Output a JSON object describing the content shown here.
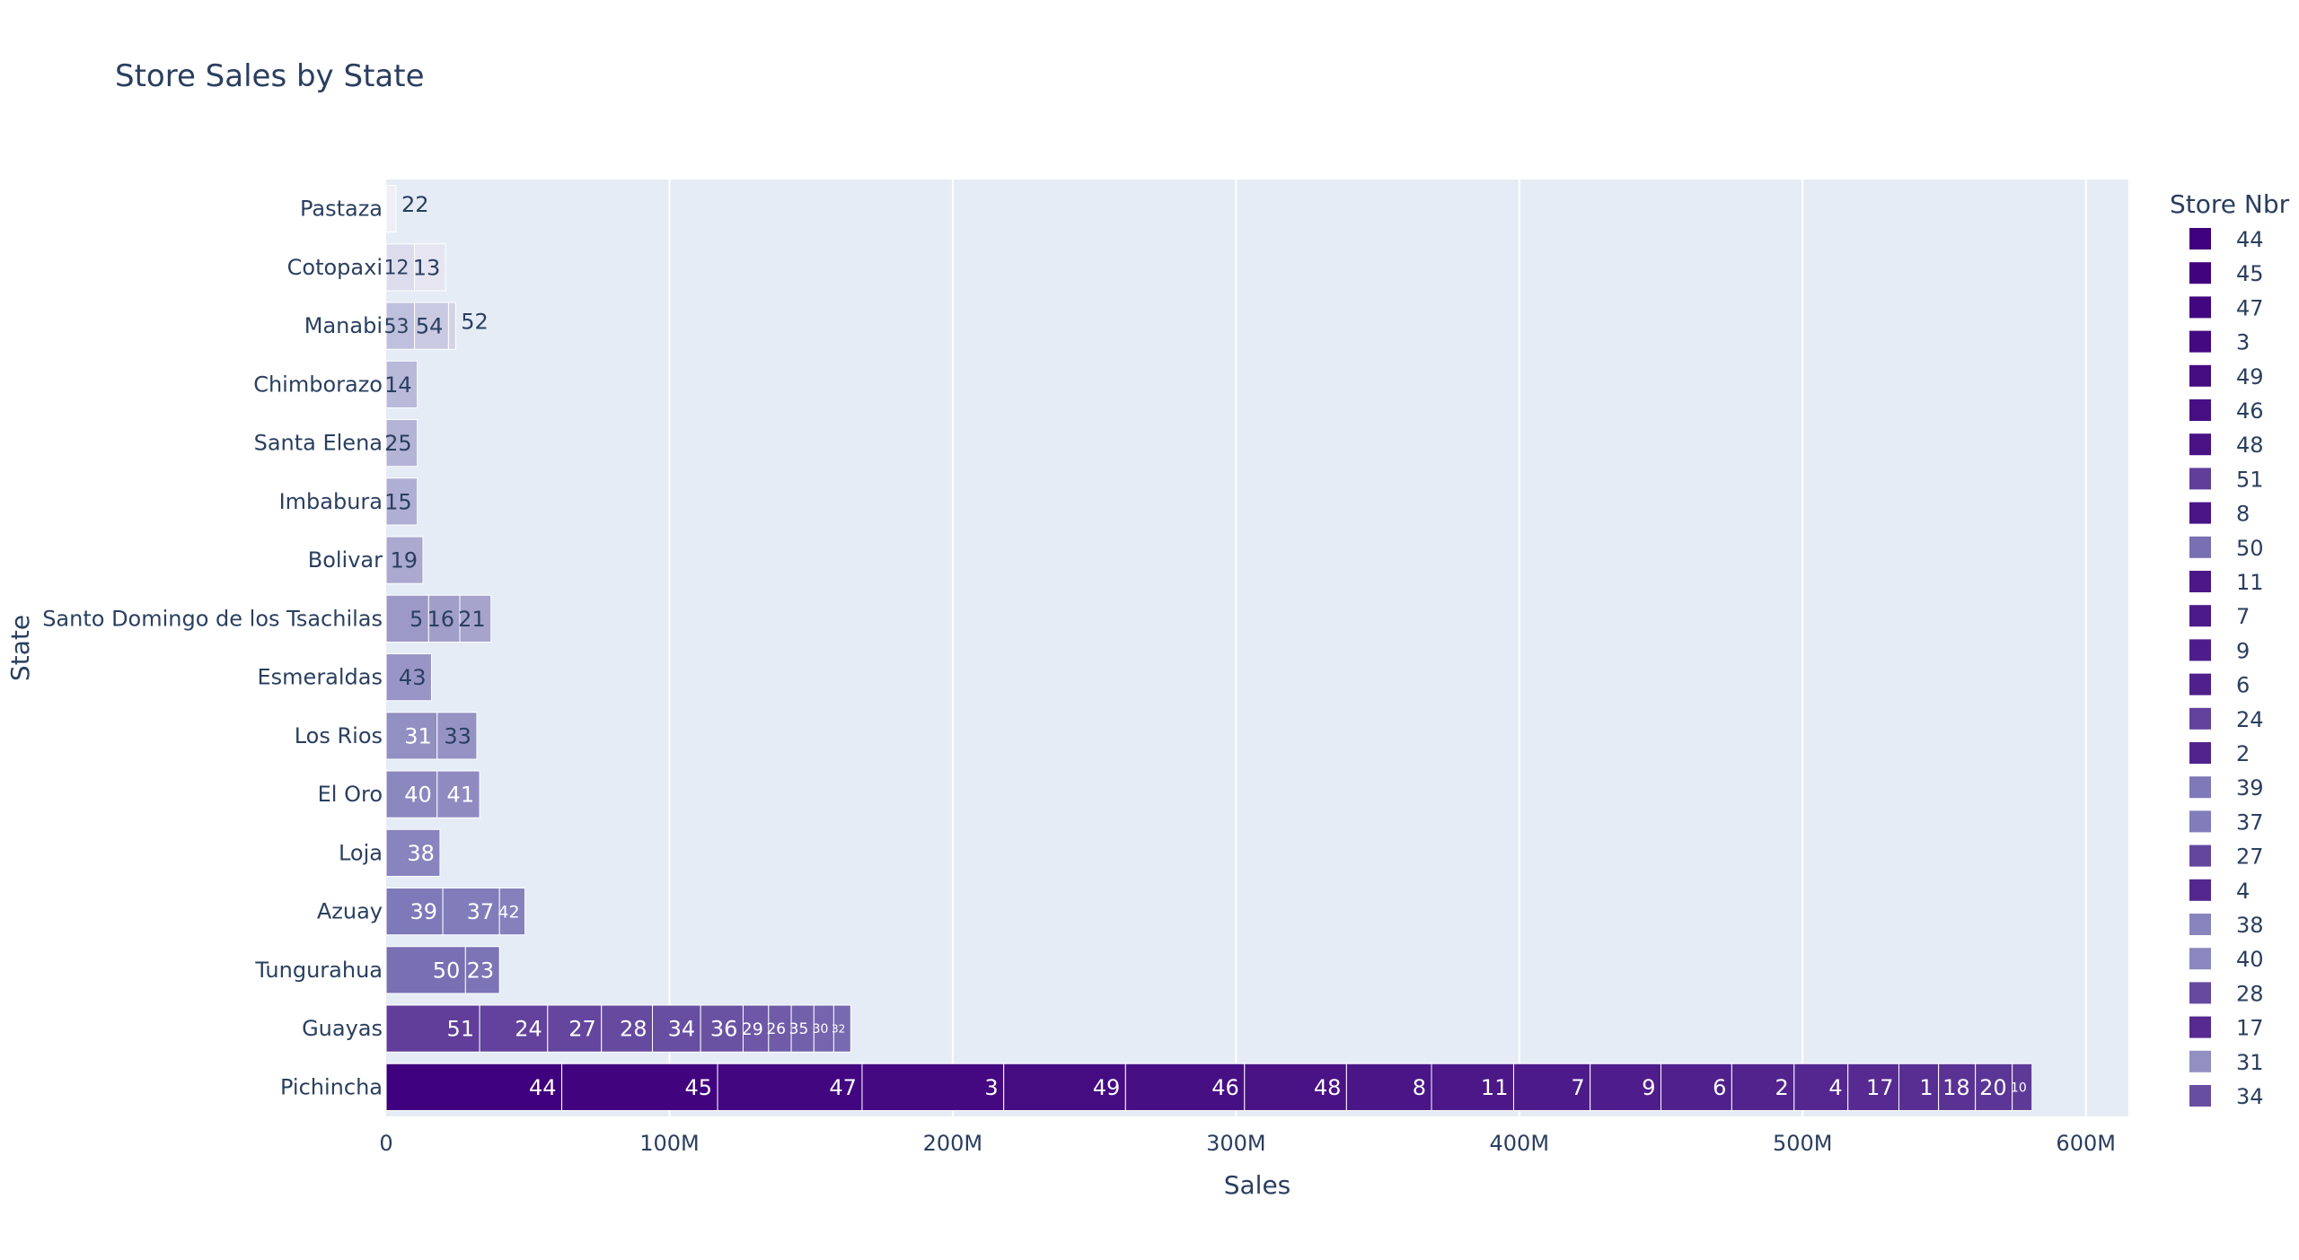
{
  "chart_data": {
    "type": "bar",
    "orientation": "horizontal",
    "barmode": "stack",
    "title": "Store Sales by State",
    "xlabel": "Sales",
    "ylabel": "State",
    "legend_title": "Store Nbr",
    "legend_placement": "right",
    "xlim": [
      0,
      615
    ],
    "x_unit": "M",
    "x_ticks": [
      0,
      100,
      200,
      300,
      400,
      500,
      600
    ],
    "x_tick_labels": [
      "0",
      "100M",
      "200M",
      "300M",
      "400M",
      "500M",
      "600M"
    ],
    "grid": true,
    "categories": [
      "Pichincha",
      "Guayas",
      "Tungurahua",
      "Azuay",
      "Loja",
      "El Oro",
      "Los Rios",
      "Esmeraldas",
      "Santo Domingo de los Tsachilas",
      "Bolivar",
      "Imbabura",
      "Santa Elena",
      "Chimborazo",
      "Manabi",
      "Cotopaxi",
      "Pastaza"
    ],
    "legend_items": [
      "44",
      "45",
      "47",
      "3",
      "49",
      "46",
      "48",
      "51",
      "8",
      "50",
      "11",
      "7",
      "9",
      "6",
      "24",
      "2",
      "39",
      "37",
      "27",
      "4",
      "38",
      "40",
      "28",
      "17",
      "31",
      "34"
    ],
    "colors": {
      "scale_dark": "#3f007d",
      "scale_light": "#f0eef6",
      "plot_bg": "#e5ecf6",
      "grid": "#ffffff",
      "text": "#2a3f5f"
    },
    "segments": {
      "Pichincha": [
        {
          "store": "44",
          "value": 62
        },
        {
          "store": "45",
          "value": 55
        },
        {
          "store": "47",
          "value": 51
        },
        {
          "store": "3",
          "value": 50
        },
        {
          "store": "49",
          "value": 43
        },
        {
          "store": "46",
          "value": 42
        },
        {
          "store": "48",
          "value": 36
        },
        {
          "store": "8",
          "value": 30
        },
        {
          "store": "11",
          "value": 29
        },
        {
          "store": "7",
          "value": 27
        },
        {
          "store": "9",
          "value": 25
        },
        {
          "store": "6",
          "value": 25
        },
        {
          "store": "2",
          "value": 22
        },
        {
          "store": "4",
          "value": 19
        },
        {
          "store": "17",
          "value": 18
        },
        {
          "store": "1",
          "value": 14
        },
        {
          "store": "18",
          "value": 13
        },
        {
          "store": "20",
          "value": 13
        },
        {
          "store": "10",
          "value": 7
        }
      ],
      "Guayas": [
        {
          "store": "51",
          "value": 33
        },
        {
          "store": "24",
          "value": 24
        },
        {
          "store": "27",
          "value": 19
        },
        {
          "store": "28",
          "value": 18
        },
        {
          "store": "34",
          "value": 17
        },
        {
          "store": "36",
          "value": 15
        },
        {
          "store": "29",
          "value": 9
        },
        {
          "store": "26",
          "value": 8
        },
        {
          "store": "35",
          "value": 8
        },
        {
          "store": "30",
          "value": 7
        },
        {
          "store": "32",
          "value": 6
        }
      ],
      "Tungurahua": [
        {
          "store": "50",
          "value": 28
        },
        {
          "store": "23",
          "value": 12
        }
      ],
      "Azuay": [
        {
          "store": "39",
          "value": 20
        },
        {
          "store": "37",
          "value": 20
        },
        {
          "store": "42",
          "value": 9
        }
      ],
      "Loja": [
        {
          "store": "38",
          "value": 19
        }
      ],
      "El Oro": [
        {
          "store": "40",
          "value": 18
        },
        {
          "store": "41",
          "value": 15
        }
      ],
      "Los Rios": [
        {
          "store": "31",
          "value": 18
        },
        {
          "store": "33",
          "value": 14
        }
      ],
      "Esmeraldas": [
        {
          "store": "43",
          "value": 16
        }
      ],
      "Santo Domingo de los Tsachilas": [
        {
          "store": "5",
          "value": 15
        },
        {
          "store": "16",
          "value": 11
        },
        {
          "store": "21",
          "value": 11
        }
      ],
      "Bolivar": [
        {
          "store": "19",
          "value": 13
        }
      ],
      "Imbabura": [
        {
          "store": "15",
          "value": 11
        }
      ],
      "Santa Elena": [
        {
          "store": "25",
          "value": 11
        }
      ],
      "Chimborazo": [
        {
          "store": "14",
          "value": 11
        }
      ],
      "Manabi": [
        {
          "store": "53",
          "value": 10
        },
        {
          "store": "54",
          "value": 12
        },
        {
          "store": "52",
          "value": 2.5
        }
      ],
      "Cotopaxi": [
        {
          "store": "12",
          "value": 10
        },
        {
          "store": "13",
          "value": 11
        }
      ],
      "Pastaza": [
        {
          "store": "22",
          "value": 3.5
        }
      ]
    }
  }
}
